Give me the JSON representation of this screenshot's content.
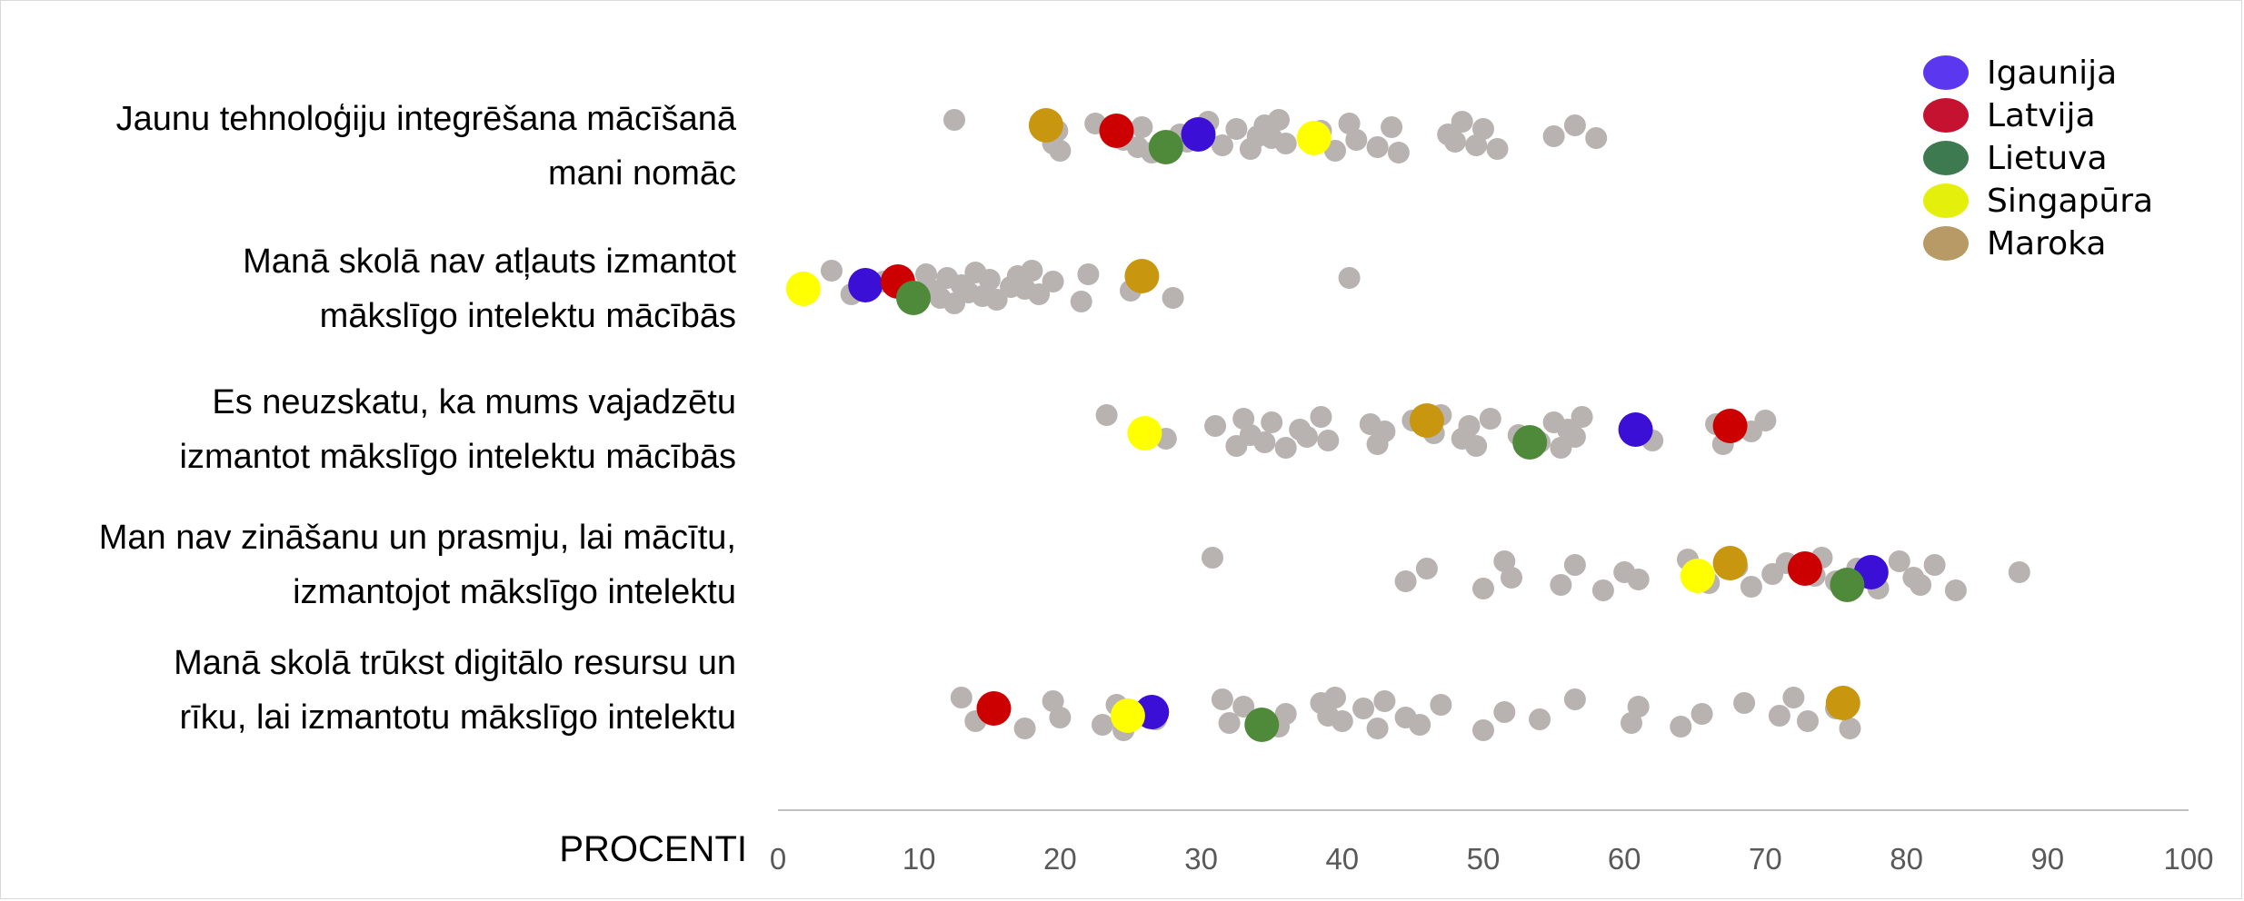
{
  "chart_data": {
    "type": "scatter",
    "xlabel": "PROCENTI",
    "xlim": [
      0,
      100
    ],
    "xticks": [
      0,
      10,
      20,
      30,
      40,
      50,
      60,
      70,
      80,
      90,
      100
    ],
    "grid": false,
    "legend_position": "top-right",
    "colors": {
      "Igaunija": "#3b0fd6",
      "Latvija": "#cc0000",
      "Lietuva": "#4f8a3b",
      "Singapūra": "#ffff00",
      "Maroka": "#c8960f",
      "others": "#b8b2b0"
    },
    "legend": [
      {
        "name": "Igaunija",
        "color": "#5b37f0"
      },
      {
        "name": "Latvija",
        "color": "#c41230"
      },
      {
        "name": "Lietuva",
        "color": "#3e7a50"
      },
      {
        "name": "Singapūra",
        "color": "#e4f00c"
      },
      {
        "name": "Maroka",
        "color": "#b89a66"
      }
    ],
    "categories": [
      {
        "lines": [
          "Jaunu tehnoloģiju integrēšana mācīšanā",
          "mani nomāc"
        ],
        "highlights": {
          "Igaunija": 29.8,
          "Latvija": 24.0,
          "Lietuva": 27.5,
          "Singapūra": 38.0,
          "Maroka": 19.0
        },
        "others": [
          12.5,
          19.5,
          19.8,
          20.0,
          22.5,
          24.5,
          25.5,
          25.8,
          26.5,
          28.5,
          29.0,
          30.5,
          31.5,
          32.5,
          33.5,
          34.0,
          34.5,
          35.0,
          35.5,
          36.0,
          38.5,
          39.5,
          40.5,
          41.0,
          42.5,
          43.5,
          44.0,
          47.5,
          48.0,
          48.5,
          49.5,
          50.0,
          51.0,
          55.0,
          56.5,
          58.0
        ]
      },
      {
        "lines": [
          "Manā skolā nav atļauts izmantot",
          "mākslīgo intelektu mācībās"
        ],
        "highlights": {
          "Igaunija": 6.2,
          "Latvija": 8.5,
          "Lietuva": 9.6,
          "Singapūra": 1.8,
          "Maroka": 25.8
        },
        "others": [
          3.8,
          5.2,
          7.5,
          9.5,
          10.5,
          11.0,
          11.5,
          12.0,
          12.5,
          13.0,
          13.5,
          14.0,
          14.5,
          15.0,
          15.5,
          16.5,
          17.0,
          17.5,
          18.0,
          18.5,
          19.5,
          21.5,
          22.0,
          25.0,
          28.0,
          40.5
        ]
      },
      {
        "lines": [
          "Es neuzskatu, ka mums vajadzētu",
          "izmantot mākslīgo intelektu mācībās"
        ],
        "highlights": {
          "Igaunija": 60.8,
          "Latvija": 67.5,
          "Lietuva": 53.3,
          "Singapūra": 26.0,
          "Maroka": 46.0
        },
        "others": [
          23.3,
          27.5,
          31.0,
          32.5,
          33.0,
          33.5,
          34.5,
          35.0,
          36.0,
          37.0,
          37.5,
          38.5,
          39.0,
          42.0,
          42.5,
          43.0,
          45.0,
          46.5,
          47.0,
          48.5,
          49.0,
          49.5,
          50.5,
          52.5,
          54.0,
          55.0,
          55.5,
          56.0,
          56.5,
          57.0,
          62.0,
          66.5,
          67.0,
          69.0,
          70.0
        ]
      },
      {
        "lines": [
          "Man nav zināšanu un prasmju, lai mācītu,",
          "izmantojot mākslīgo intelektu"
        ],
        "highlights": {
          "Igaunija": 77.5,
          "Latvija": 72.8,
          "Lietuva": 75.8,
          "Singapūra": 65.2,
          "Maroka": 67.5
        },
        "others": [
          30.8,
          44.5,
          46.0,
          50.0,
          51.5,
          52.0,
          55.5,
          56.5,
          58.5,
          60.0,
          61.0,
          64.5,
          66.0,
          68.0,
          69.0,
          70.5,
          71.5,
          73.5,
          74.0,
          75.0,
          76.5,
          78.0,
          79.5,
          80.5,
          81.0,
          82.0,
          83.5,
          88.0
        ]
      },
      {
        "lines": [
          "Manā skolā trūkst digitālo resursu un",
          "rīku, lai izmantotu mākslīgo intelektu"
        ],
        "highlights": {
          "Igaunija": 26.5,
          "Latvija": 15.3,
          "Lietuva": 34.3,
          "Singapūra": 24.8,
          "Maroka": 75.5
        },
        "others": [
          13.0,
          14.0,
          15.5,
          17.5,
          19.5,
          20.0,
          23.0,
          24.0,
          24.5,
          25.5,
          26.8,
          31.5,
          32.0,
          33.0,
          35.5,
          36.0,
          38.5,
          39.0,
          39.5,
          40.0,
          41.5,
          42.5,
          43.0,
          44.5,
          45.5,
          47.0,
          50.0,
          51.5,
          54.0,
          56.5,
          60.5,
          61.0,
          64.0,
          65.5,
          68.5,
          71.0,
          72.0,
          73.0,
          75.0,
          76.0
        ]
      }
    ]
  }
}
